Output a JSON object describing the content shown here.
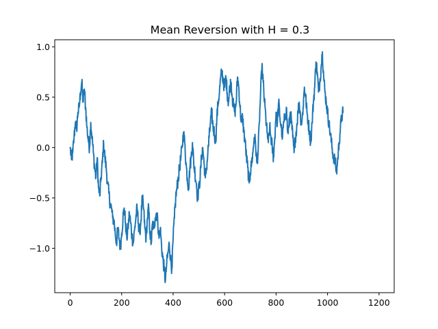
{
  "chart_data": {
    "type": "line",
    "title": "Mean Reversion with H = 0.3",
    "xlabel": "",
    "ylabel": "",
    "xlim": [
      -60,
      1259
    ],
    "ylim": [
      -1.44,
      1.07
    ],
    "x_ticks": [
      {
        "value": 0,
        "label": "0"
      },
      {
        "value": 200,
        "label": "200"
      },
      {
        "value": 400,
        "label": "400"
      },
      {
        "value": 600,
        "label": "600"
      },
      {
        "value": 800,
        "label": "800"
      },
      {
        "value": 1000,
        "label": "1000"
      },
      {
        "value": 1200,
        "label": "1200"
      }
    ],
    "y_ticks": [
      {
        "value": 1.0,
        "label": "1.0"
      },
      {
        "value": 0.5,
        "label": "0.5"
      },
      {
        "value": 0.0,
        "label": "0.0"
      },
      {
        "value": -0.5,
        "label": "−0.5"
      },
      {
        "value": -1.0,
        "label": "−1.0"
      }
    ],
    "grid": false,
    "line_color": "#1f77b4",
    "series": [
      {
        "name": "",
        "x_start": 0,
        "x_step": 5,
        "values": [
          0.0,
          -0.12,
          -0.05,
          0.1,
          0.25,
          0.18,
          0.35,
          0.4,
          0.55,
          0.65,
          0.45,
          0.58,
          0.4,
          0.2,
          0.08,
          0.0,
          0.25,
          0.1,
          -0.05,
          -0.2,
          -0.3,
          -0.1,
          -0.4,
          -0.48,
          -0.3,
          -0.15,
          0.05,
          -0.1,
          -0.2,
          -0.35,
          -0.45,
          -0.55,
          -0.6,
          -0.7,
          -0.72,
          -0.85,
          -0.95,
          -0.8,
          -0.9,
          -1.0,
          -0.85,
          -0.7,
          -0.6,
          -0.75,
          -0.9,
          -0.8,
          -0.65,
          -0.75,
          -0.88,
          -0.95,
          -0.82,
          -0.7,
          -0.6,
          -0.75,
          -0.85,
          -0.72,
          -0.5,
          -0.6,
          -0.8,
          -0.9,
          -0.7,
          -0.6,
          -0.85,
          -0.95,
          -0.75,
          -0.8,
          -0.7,
          -0.65,
          -0.72,
          -0.9,
          -0.8,
          -0.98,
          -1.1,
          -1.2,
          -1.32,
          -1.15,
          -1.05,
          -0.95,
          -1.1,
          -1.2,
          -0.9,
          -0.7,
          -0.5,
          -0.4,
          -0.3,
          -0.2,
          -0.1,
          0.0,
          0.15,
          0.05,
          -0.15,
          -0.3,
          -0.4,
          -0.2,
          -0.1,
          0.05,
          -0.15,
          -0.25,
          -0.35,
          -0.5,
          -0.4,
          -0.3,
          -0.1,
          0.0,
          -0.15,
          -0.3,
          -0.2,
          -0.05,
          0.1,
          0.25,
          0.35,
          0.2,
          0.15,
          0.05,
          0.3,
          0.45,
          0.55,
          0.7,
          0.75,
          0.65,
          0.6,
          0.7,
          0.55,
          0.45,
          0.6,
          0.65,
          0.5,
          0.4,
          0.35,
          0.45,
          0.7,
          0.6,
          0.4,
          0.25,
          0.3,
          0.15,
          0.05,
          -0.1,
          -0.2,
          -0.35,
          -0.25,
          -0.15,
          -0.05,
          0.1,
          0.05,
          -0.15,
          -0.05,
          0.25,
          0.55,
          0.8,
          0.65,
          0.45,
          0.3,
          0.15,
          0.05,
          0.2,
          0.1,
          0.0,
          -0.1,
          0.1,
          0.35,
          0.25,
          0.45,
          0.3,
          0.2,
          0.1,
          0.25,
          0.3,
          0.4,
          0.15,
          0.2,
          0.35,
          0.25,
          0.1,
          -0.05,
          0.1,
          0.2,
          0.35,
          0.45,
          0.3,
          0.25,
          0.4,
          0.6,
          0.5,
          0.35,
          0.25,
          0.15,
          0.05,
          0.25,
          0.45,
          0.6,
          0.85,
          0.75,
          0.55,
          0.65,
          0.8,
          0.95,
          0.7,
          0.55,
          0.45,
          0.35,
          0.25,
          0.15,
          0.05,
          -0.05,
          -0.1,
          -0.15,
          -0.25,
          -0.1,
          0.05,
          0.2,
          0.3,
          0.35
        ]
      }
    ]
  }
}
